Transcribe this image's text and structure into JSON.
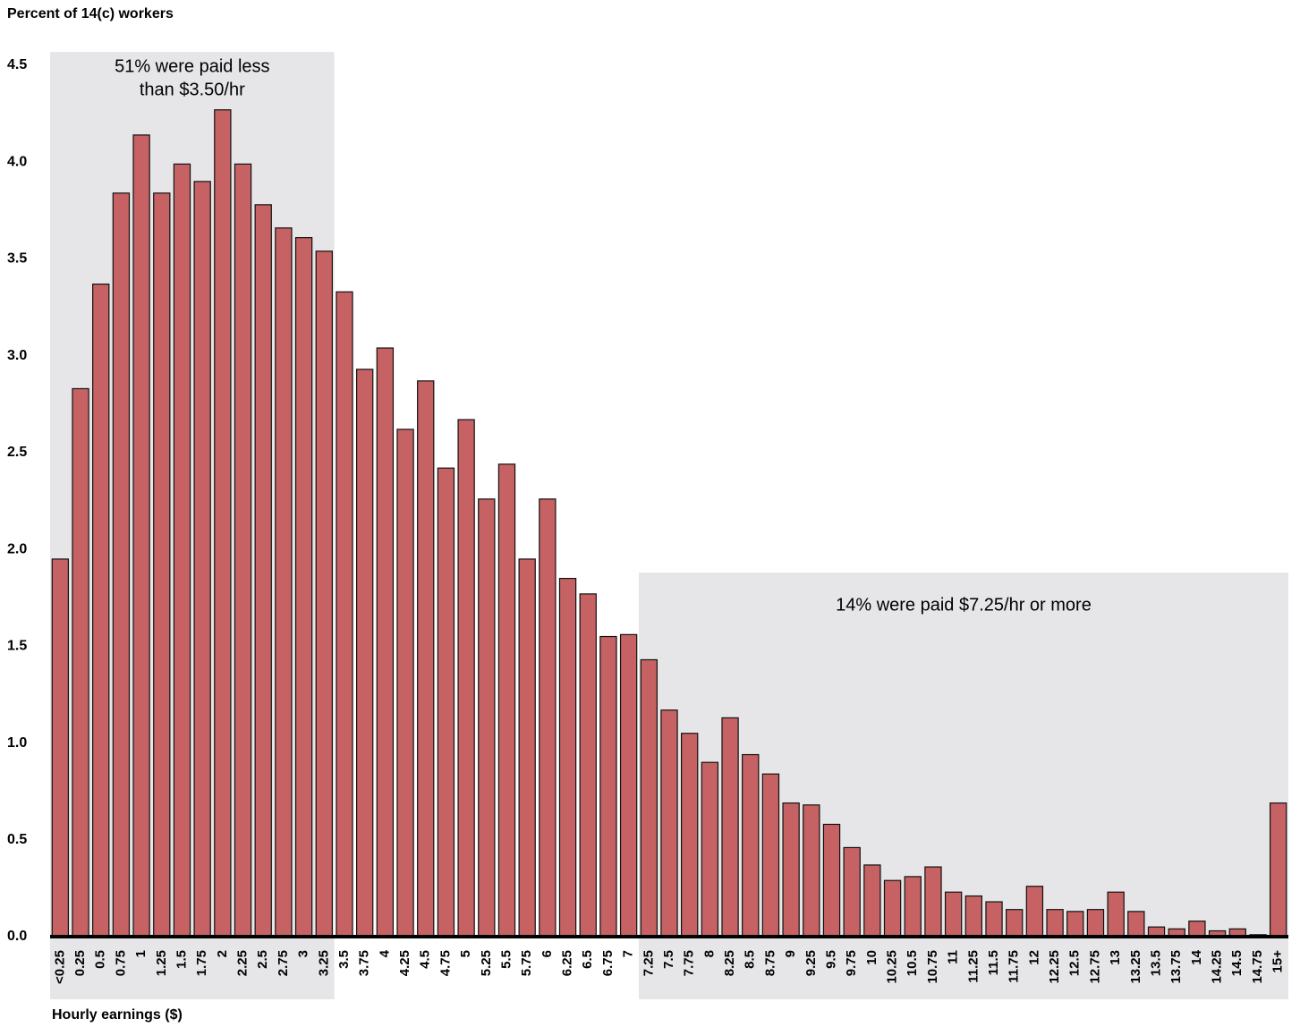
{
  "chart_data": {
    "type": "bar",
    "y_label": "Percent of 14(c) workers",
    "x_label": "Hourly earnings ($)",
    "categories": [
      "<0.25",
      "0.25",
      "0.5",
      "0.75",
      "1",
      "1.25",
      "1.5",
      "1.75",
      "2",
      "2.25",
      "2.5",
      "2.75",
      "3",
      "3.25",
      "3.5",
      "3.75",
      "4",
      "4.25",
      "4.5",
      "4.75",
      "5",
      "5.25",
      "5.5",
      "5.75",
      "6",
      "6.25",
      "6.5",
      "6.75",
      "7",
      "7.25",
      "7.5",
      "7.75",
      "8",
      "8.25",
      "8.5",
      "8.75",
      "9",
      "9.25",
      "9.5",
      "9.75",
      "10",
      "10.25",
      "10.5",
      "10.75",
      "11",
      "11.25",
      "11.5",
      "11.75",
      "12",
      "12.25",
      "12.5",
      "12.75",
      "13",
      "13.25",
      "13.5",
      "13.75",
      "14",
      "14.25",
      "14.5",
      "14.75",
      "15+"
    ],
    "values": [
      1.95,
      2.83,
      3.37,
      3.84,
      4.14,
      3.84,
      3.99,
      3.9,
      4.27,
      3.99,
      3.78,
      3.66,
      3.61,
      3.54,
      3.33,
      2.93,
      3.04,
      2.62,
      2.87,
      2.42,
      2.67,
      2.26,
      2.44,
      1.95,
      2.26,
      1.85,
      1.77,
      1.55,
      1.56,
      1.43,
      1.17,
      1.05,
      0.9,
      1.13,
      0.94,
      0.84,
      0.69,
      0.68,
      0.58,
      0.46,
      0.37,
      0.29,
      0.31,
      0.36,
      0.23,
      0.21,
      0.18,
      0.14,
      0.26,
      0.14,
      0.13,
      0.14,
      0.23,
      0.13,
      0.05,
      0.04,
      0.08,
      0.03,
      0.04,
      0.01,
      0.69
    ],
    "color": "#c66263",
    "ylim": [
      0,
      4.5
    ],
    "yticks": [
      {
        "value": 0,
        "label": "0.0"
      },
      0.5,
      {
        "value": 1,
        "label": "1.0"
      },
      1.5,
      {
        "value": 2,
        "label": "2.0"
      },
      2.5,
      {
        "value": 3,
        "label": "3.0"
      },
      3.5,
      {
        "value": 4,
        "label": "4.0"
      },
      4.5
    ],
    "grid": false,
    "annotations": [
      {
        "lines": [
          "51% were paid less",
          "than $3.50/hr"
        ],
        "from": "<0.25",
        "to": "3.25"
      },
      {
        "lines": [
          "14% were paid $7.25/hr or more"
        ],
        "from": "7.25",
        "to": "15+"
      }
    ]
  }
}
